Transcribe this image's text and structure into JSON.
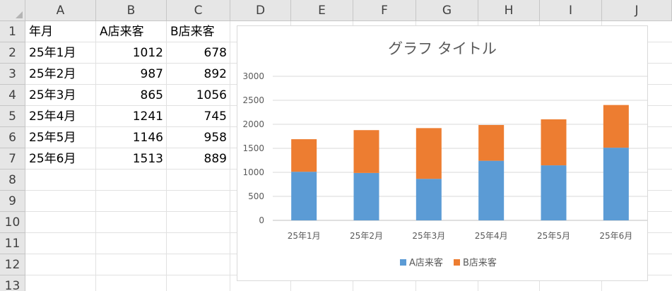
{
  "spreadsheet": {
    "columns": [
      "A",
      "B",
      "C",
      "D",
      "E",
      "F",
      "G",
      "H",
      "I",
      "J"
    ],
    "rows": [
      "1",
      "2",
      "3",
      "4",
      "5",
      "6",
      "7",
      "8",
      "9",
      "10",
      "11",
      "12",
      "13"
    ],
    "cells": [
      [
        "年月",
        "A店来客",
        "B店来客"
      ],
      [
        "25年1月",
        "1012",
        "678"
      ],
      [
        "25年2月",
        "987",
        "892"
      ],
      [
        "25年3月",
        "865",
        "1056"
      ],
      [
        "25年4月",
        "1241",
        "745"
      ],
      [
        "25年5月",
        "1146",
        "958"
      ],
      [
        "25年6月",
        "1513",
        "889"
      ]
    ]
  },
  "chart_data": {
    "type": "bar",
    "stacked": true,
    "title": "グラフ タイトル",
    "categories": [
      "25年1月",
      "25年2月",
      "25年3月",
      "25年4月",
      "25年5月",
      "25年6月"
    ],
    "series": [
      {
        "name": "A店来客",
        "values": [
          1012,
          987,
          865,
          1241,
          1146,
          1513
        ],
        "color": "#5b9bd5"
      },
      {
        "name": "B店来客",
        "values": [
          678,
          892,
          1056,
          745,
          958,
          889
        ],
        "color": "#ed7d31"
      }
    ],
    "ylim": [
      0,
      3000
    ],
    "yticks": [
      "0",
      "500",
      "1000",
      "1500",
      "2000",
      "2500",
      "3000"
    ],
    "grid": true,
    "legend": "bottom"
  }
}
